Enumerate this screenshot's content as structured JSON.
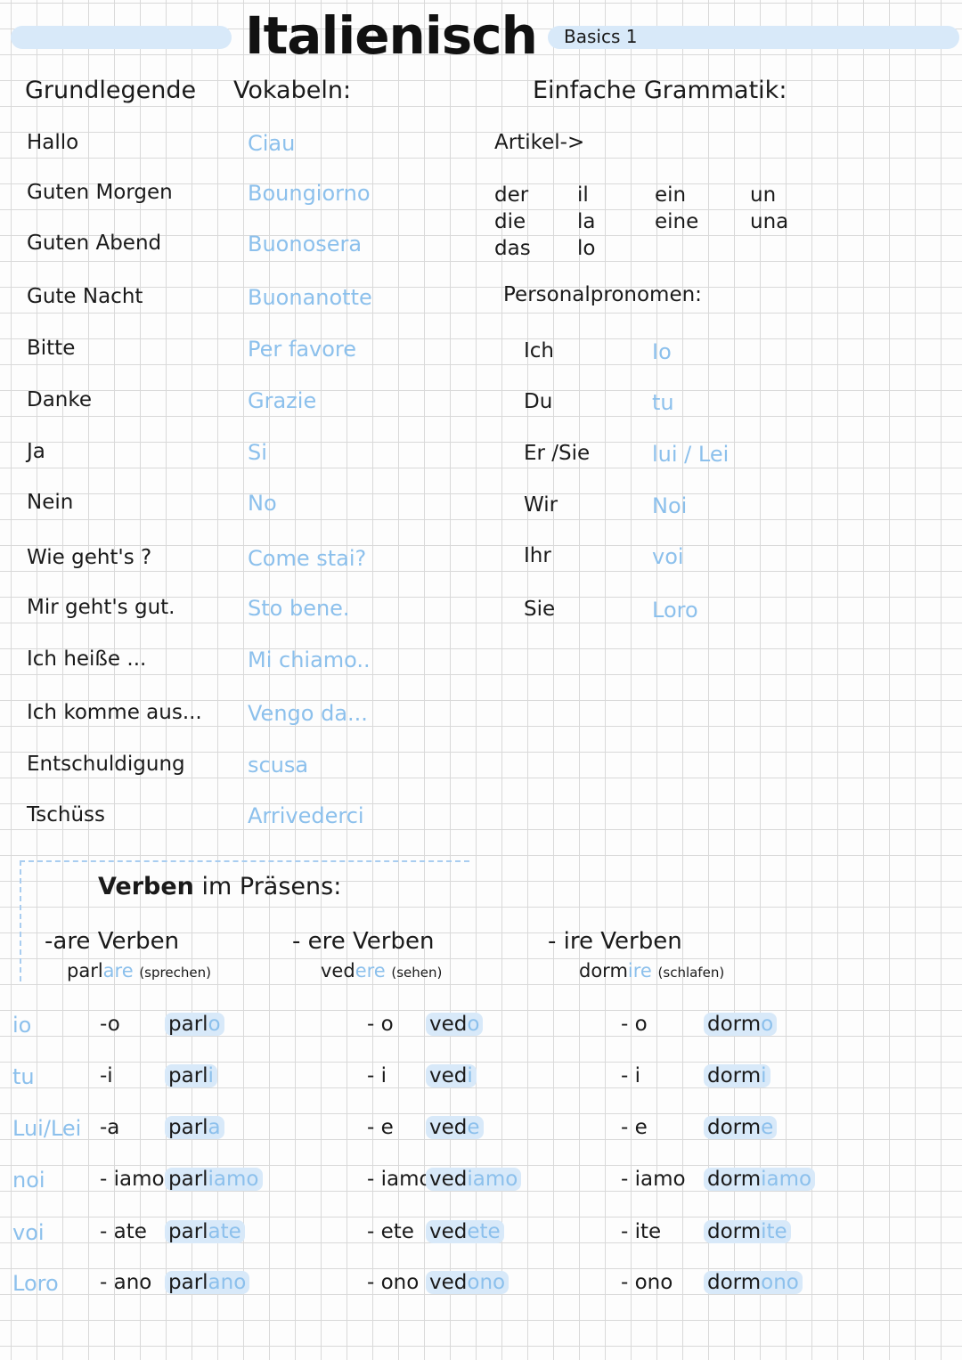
{
  "header": {
    "title": "Italienisch",
    "subtitle": "Basics 1",
    "accent_color": "#8cc0ec",
    "highlight_color": "#d8e9f9"
  },
  "vocab": {
    "heading_1": "Grundlegende",
    "heading_2": "Vokabeln:",
    "items": [
      {
        "de": "Hallo",
        "it": "Ciau"
      },
      {
        "de": "Guten Morgen",
        "it": "Boungiorno"
      },
      {
        "de": "Guten Abend",
        "it": "Buonosera"
      },
      {
        "de": "Gute Nacht",
        "it": "Buonanotte"
      },
      {
        "de": "Bitte",
        "it": "Per favore"
      },
      {
        "de": "Danke",
        "it": "Grazie"
      },
      {
        "de": "Ja",
        "it": "Si"
      },
      {
        "de": "Nein",
        "it": "No"
      },
      {
        "de": "Wie geht's ?",
        "it": "Come stai?"
      },
      {
        "de": "Mir geht's gut.",
        "it": "Sto bene."
      },
      {
        "de": "Ich heiße ...",
        "it": "Mi chiamo.."
      },
      {
        "de": "Ich komme aus...",
        "it": "Vengo da..."
      },
      {
        "de": "Entschuldigung",
        "it": "scusa"
      },
      {
        "de": "Tschüss",
        "it": "Arrivederci"
      }
    ]
  },
  "grammar": {
    "heading": "Einfache Grammatik:",
    "articles_label": "Artikel->",
    "articles": [
      {
        "de_def": "der",
        "it_def": "il",
        "de_indef": "ein",
        "it_indef": "un"
      },
      {
        "de_def": "die",
        "it_def": "la",
        "de_indef": "eine",
        "it_indef": "una"
      },
      {
        "de_def": "das",
        "it_def": "lo",
        "de_indef": "",
        "it_indef": ""
      }
    ],
    "pronouns_label": "Personalpronomen:",
    "pronouns": [
      {
        "de": "Ich",
        "it": "Io"
      },
      {
        "de": "Du",
        "it": "tu"
      },
      {
        "de": "Er /Sie",
        "it": "lui / Lei"
      },
      {
        "de": "Wir",
        "it": "Noi"
      },
      {
        "de": "Ihr",
        "it": "voi"
      },
      {
        "de": "Sie",
        "it": "Loro"
      }
    ]
  },
  "verbs": {
    "heading_bold": "Verben",
    "heading_rest": "im Präsens:",
    "groups": [
      {
        "label": "-are Verben",
        "inf_stem": "parl",
        "inf_end": "are",
        "translation": "(sprechen)"
      },
      {
        "label": "- ere Verben",
        "inf_stem": "ved",
        "inf_end": "ere",
        "translation": "(sehen)"
      },
      {
        "label": "- ire Verben",
        "inf_stem": "dorm",
        "inf_end": "ire",
        "translation": "(schlafen)"
      }
    ],
    "rows": [
      {
        "pronoun": "io",
        "forms": [
          {
            "ending": "-o",
            "stem": "parl",
            "end": "o"
          },
          {
            "ending": "- o",
            "stem": "ved",
            "end": "o"
          },
          {
            "ending": "- o",
            "stem": "dorm",
            "end": "o"
          }
        ]
      },
      {
        "pronoun": "tu",
        "forms": [
          {
            "ending": "-i",
            "stem": "parl",
            "end": "i"
          },
          {
            "ending": "- i",
            "stem": "ved",
            "end": "i"
          },
          {
            "ending": "- i",
            "stem": "dorm",
            "end": "i"
          }
        ]
      },
      {
        "pronoun": "Lui/Lei",
        "forms": [
          {
            "ending": "-a",
            "stem": "parl",
            "end": "a"
          },
          {
            "ending": "- e",
            "stem": "ved",
            "end": "e"
          },
          {
            "ending": "- e",
            "stem": "dorm",
            "end": "e"
          }
        ]
      },
      {
        "pronoun": "noi",
        "forms": [
          {
            "ending": "- iamo",
            "stem": "parl",
            "end": "iamo"
          },
          {
            "ending": "- iamo",
            "stem": "ved",
            "end": "iamo"
          },
          {
            "ending": "- iamo",
            "stem": "dorm",
            "end": "iamo"
          }
        ]
      },
      {
        "pronoun": "voi",
        "forms": [
          {
            "ending": "- ate",
            "stem": "parl",
            "end": "ate"
          },
          {
            "ending": "- ete",
            "stem": "ved",
            "end": "ete"
          },
          {
            "ending": "- ite",
            "stem": "dorm",
            "end": "ite"
          }
        ]
      },
      {
        "pronoun": "Loro",
        "forms": [
          {
            "ending": "- ano",
            "stem": "parl",
            "end": "ano"
          },
          {
            "ending": "- ono",
            "stem": "ved",
            "end": "ono"
          },
          {
            "ending": "- ono",
            "stem": "dorm",
            "end": "ono"
          }
        ]
      }
    ]
  }
}
